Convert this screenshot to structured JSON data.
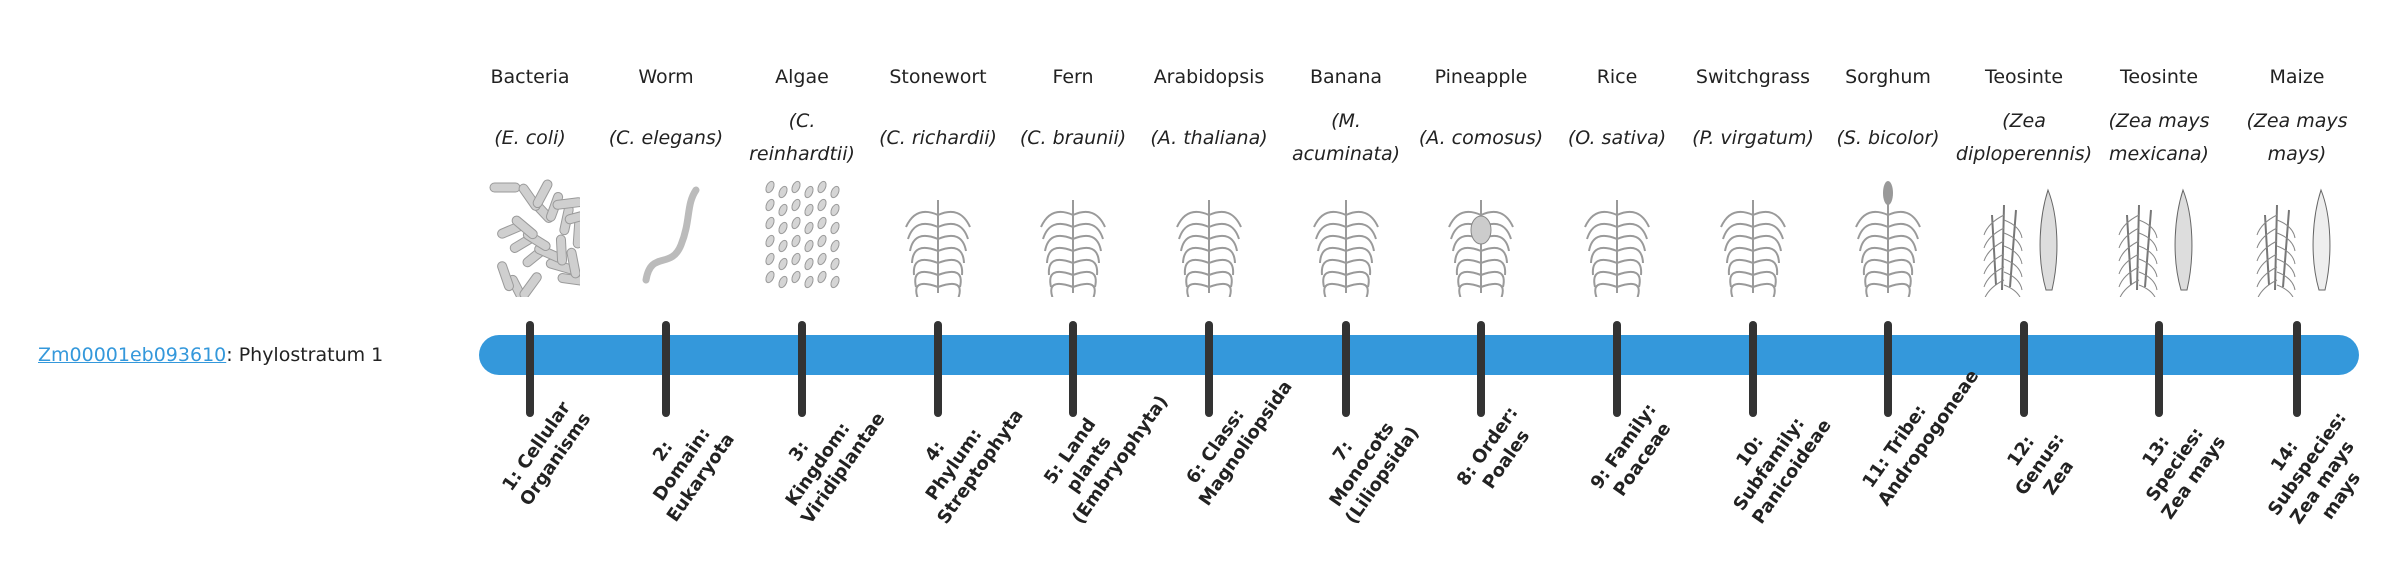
{
  "gene": {
    "id": "Zm00001eb093610",
    "suffix": ": Phylostratum 1"
  },
  "colors": {
    "bar": "#3498db",
    "tick": "#333333",
    "link": "#3498db"
  },
  "strata": [
    {
      "common": "Bacteria",
      "sci": "(E. coli)",
      "label": "1: Cellular Organisms",
      "icon": "bacteria-icon"
    },
    {
      "common": "Worm",
      "sci": "(C. elegans)",
      "label": "2: Domain: Eukaryota",
      "icon": "worm-icon"
    },
    {
      "common": "Algae",
      "sci": "(C. reinhardtii)",
      "label": "3: Kingdom: Viridiplantae",
      "icon": "algae-icon"
    },
    {
      "common": "Stonewort",
      "sci": "(C. richardii)",
      "label": "4: Phylum: Streptophyta",
      "icon": "stonewort-icon"
    },
    {
      "common": "Fern",
      "sci": "(C. braunii)",
      "label": "5: Land plants (Embryophyta)",
      "icon": "fern-icon"
    },
    {
      "common": "Arabidopsis",
      "sci": "(A. thaliana)",
      "label": "6: Class: Magnoliopsida",
      "icon": "arabidopsis-icon"
    },
    {
      "common": "Banana",
      "sci": "(M. acuminata)",
      "label": "7: Monocots (Liliopsida)",
      "icon": "banana-icon"
    },
    {
      "common": "Pineapple",
      "sci": "(A. comosus)",
      "label": "8: Order: Poales",
      "icon": "pineapple-icon"
    },
    {
      "common": "Rice",
      "sci": "(O. sativa)",
      "label": "9: Family: Poaceae",
      "icon": "rice-icon"
    },
    {
      "common": "Switchgrass",
      "sci": "(P. virgatum)",
      "label": "10: Subfamily: Panicoideae",
      "icon": "switchgrass-icon"
    },
    {
      "common": "Sorghum",
      "sci": "(S. bicolor)",
      "label": "11: Tribe: Andropogoneae",
      "icon": "sorghum-icon"
    },
    {
      "common": "Teosinte",
      "sci": "(Zea diploperennis)",
      "label": "12: Genus: Zea",
      "icon": "teosinte-icon"
    },
    {
      "common": "Teosinte",
      "sci": "(Zea mays mexicana)",
      "label": "13: Species: Zea mays",
      "icon": "teosinte-mexicana-icon"
    },
    {
      "common": "Maize",
      "sci": "(Zea mays mays)",
      "label": "14: Subspecies: Zea mays mays",
      "icon": "maize-icon"
    }
  ]
}
